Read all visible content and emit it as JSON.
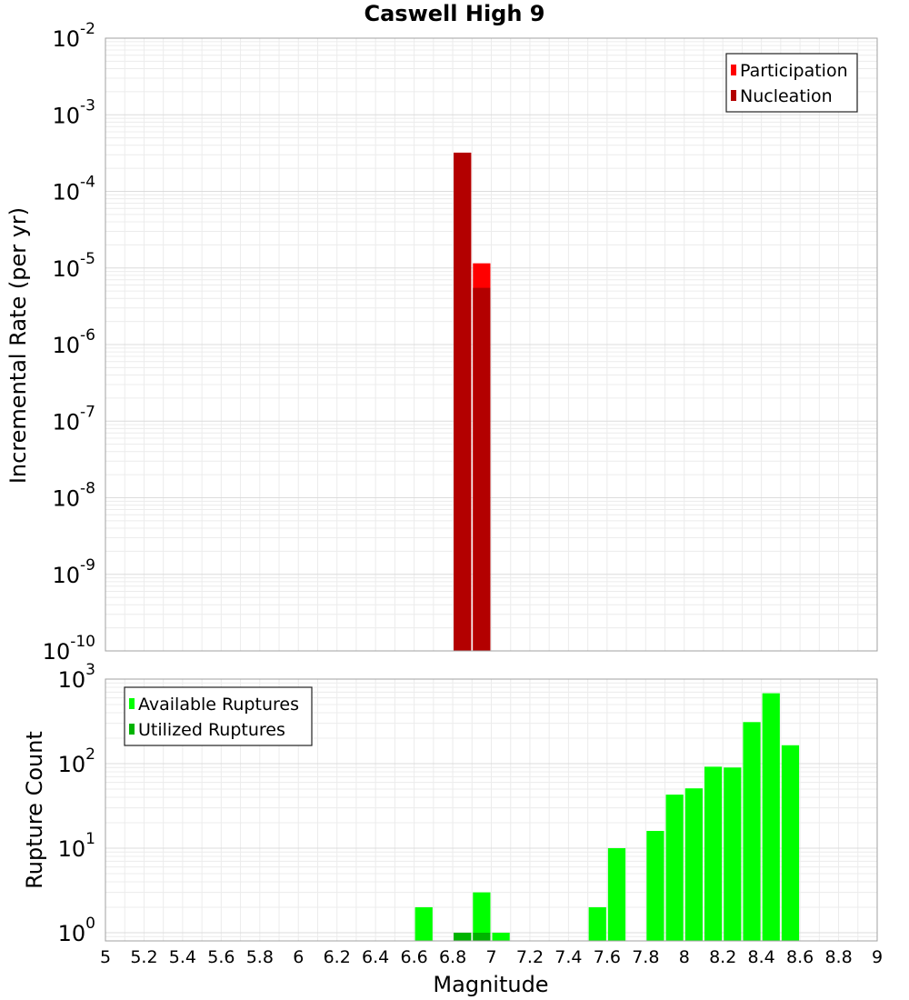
{
  "chart_data": [
    {
      "type": "bar",
      "title": "Caswell High 9",
      "xlabel": "",
      "ylabel": "Incremental Rate (per yr)",
      "xlim": [
        5,
        9
      ],
      "ylim": [
        1e-10,
        0.01
      ],
      "yscale": "log",
      "bar_width": 0.1,
      "grid": true,
      "legend_position": "top-right",
      "y_tick_labels": [
        {
          "exp": -2,
          "base": "10",
          "power": "-2"
        },
        {
          "exp": -3,
          "base": "10",
          "power": "-3"
        },
        {
          "exp": -4,
          "base": "10",
          "power": "-4"
        },
        {
          "exp": -5,
          "base": "10",
          "power": "-5"
        },
        {
          "exp": -6,
          "base": "10",
          "power": "-6"
        },
        {
          "exp": -7,
          "base": "10",
          "power": "-7"
        },
        {
          "exp": -8,
          "base": "10",
          "power": "-8"
        },
        {
          "exp": -9,
          "base": "10",
          "power": "-9"
        },
        {
          "exp": -10,
          "base": "10",
          "power": "-10"
        }
      ],
      "series": [
        {
          "name": "Participation",
          "color": "#ff0000",
          "points": [
            {
              "x": 6.85,
              "y": 0.00032
            },
            {
              "x": 6.95,
              "y": 1.15e-05
            }
          ]
        },
        {
          "name": "Nucleation",
          "color": "#b30000",
          "points": [
            {
              "x": 6.85,
              "y": 0.00032
            },
            {
              "x": 6.95,
              "y": 5.5e-06
            }
          ]
        }
      ]
    },
    {
      "type": "bar",
      "title": "",
      "xlabel": "Magnitude",
      "ylabel": "Rupture Count",
      "xlim": [
        5,
        9
      ],
      "ylim": [
        0.8,
        1000
      ],
      "yscale": "log",
      "bar_width": 0.1,
      "grid": true,
      "legend_position": "top-left",
      "x_tick_labels": [
        "5",
        "5.2",
        "5.4",
        "5.6",
        "5.8",
        "6",
        "6.2",
        "6.4",
        "6.6",
        "6.8",
        "7",
        "7.2",
        "7.4",
        "7.6",
        "7.8",
        "8",
        "8.2",
        "8.4",
        "8.6",
        "8.8",
        "9"
      ],
      "y_tick_labels": [
        {
          "exp": 0,
          "base": "10",
          "power": "0"
        },
        {
          "exp": 1,
          "base": "10",
          "power": "1"
        },
        {
          "exp": 2,
          "base": "10",
          "power": "2"
        },
        {
          "exp": 3,
          "base": "10",
          "power": "3"
        }
      ],
      "series": [
        {
          "name": "Available Ruptures",
          "color": "#00ff00",
          "points": [
            {
              "x": 6.65,
              "y": 2
            },
            {
              "x": 6.85,
              "y": 1
            },
            {
              "x": 6.95,
              "y": 3
            },
            {
              "x": 7.05,
              "y": 1
            },
            {
              "x": 7.55,
              "y": 2
            },
            {
              "x": 7.65,
              "y": 10
            },
            {
              "x": 7.85,
              "y": 16
            },
            {
              "x": 7.95,
              "y": 43
            },
            {
              "x": 8.05,
              "y": 51
            },
            {
              "x": 8.15,
              "y": 92
            },
            {
              "x": 8.25,
              "y": 90
            },
            {
              "x": 8.35,
              "y": 310
            },
            {
              "x": 8.45,
              "y": 680
            },
            {
              "x": 8.55,
              "y": 165
            }
          ]
        },
        {
          "name": "Utilized Ruptures",
          "color": "#00b300",
          "points": [
            {
              "x": 6.85,
              "y": 1
            },
            {
              "x": 6.95,
              "y": 1
            }
          ]
        }
      ]
    }
  ]
}
